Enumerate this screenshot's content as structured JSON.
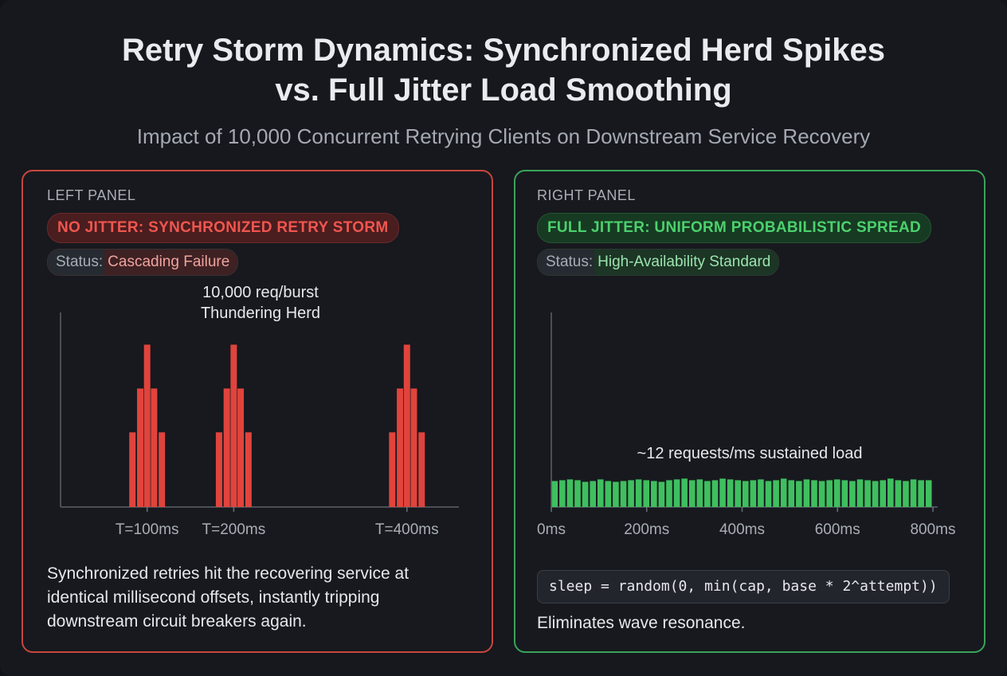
{
  "title_line1": "Retry Storm Dynamics: Synchronized Herd Spikes",
  "title_line2": "vs. Full Jitter Load Smoothing",
  "subtitle": "Impact of 10,000 Concurrent Retrying Clients on Downstream Service Recovery",
  "left": {
    "panel_label": "LEFT PANEL",
    "badge": "NO JITTER: SYNCHRONIZED RETRY STORM",
    "status_key": "Status:",
    "status_value": "Cascading Failure",
    "annotation_line1": "10,000 req/burst",
    "annotation_line2": "Thundering Herd",
    "description": "Synchronized retries hit the recovering service at identical millisecond offsets, instantly tripping downstream circuit breakers again.",
    "color": "#e0443c"
  },
  "right": {
    "panel_label": "RIGHT PANEL",
    "badge": "FULL JITTER: UNIFORM PROBABILISTIC SPREAD",
    "status_key": "Status:",
    "status_value": "High-Availability Standard",
    "annotation": "~12 requests/ms sustained load",
    "code": "sleep = random(0, min(cap, base * 2^attempt))",
    "footnote": "Eliminates wave resonance.",
    "color": "#3fbf5f"
  },
  "chart_data": [
    {
      "type": "bar",
      "panel": "left",
      "title": "",
      "xlabel": "",
      "ylabel": "",
      "x_ticks": [
        "T=100ms",
        "T=200ms",
        "T=400ms"
      ],
      "x_tick_values": [
        100,
        200,
        400
      ],
      "xlim": [
        0,
        460
      ],
      "ylim": [
        0,
        1.1
      ],
      "bars": [
        {
          "x": 83,
          "value": 0.46
        },
        {
          "x": 92,
          "value": 0.73
        },
        {
          "x": 100,
          "value": 1.0
        },
        {
          "x": 108,
          "value": 0.73
        },
        {
          "x": 117,
          "value": 0.46
        },
        {
          "x": 183,
          "value": 0.46
        },
        {
          "x": 192,
          "value": 0.73
        },
        {
          "x": 200,
          "value": 1.0
        },
        {
          "x": 208,
          "value": 0.73
        },
        {
          "x": 217,
          "value": 0.46
        },
        {
          "x": 383,
          "value": 0.46
        },
        {
          "x": 392,
          "value": 0.73
        },
        {
          "x": 400,
          "value": 1.0
        },
        {
          "x": 408,
          "value": 0.73
        },
        {
          "x": 417,
          "value": 0.46
        }
      ]
    },
    {
      "type": "bar",
      "panel": "right",
      "title": "",
      "xlabel": "",
      "ylabel": "",
      "x_ticks": [
        "0ms",
        "200ms",
        "400ms",
        "600ms",
        "800ms"
      ],
      "x_tick_values": [
        0,
        200,
        400,
        600,
        800
      ],
      "xlim": [
        0,
        810
      ],
      "ylim": [
        0,
        1.1
      ],
      "bin_width_ms": 16,
      "values": [
        0.16,
        0.165,
        0.17,
        0.165,
        0.155,
        0.16,
        0.17,
        0.16,
        0.155,
        0.16,
        0.165,
        0.17,
        0.165,
        0.16,
        0.155,
        0.165,
        0.17,
        0.175,
        0.165,
        0.17,
        0.16,
        0.165,
        0.175,
        0.17,
        0.165,
        0.16,
        0.165,
        0.17,
        0.16,
        0.165,
        0.175,
        0.165,
        0.16,
        0.17,
        0.165,
        0.16,
        0.165,
        0.17,
        0.165,
        0.16,
        0.17,
        0.165,
        0.16,
        0.165,
        0.175,
        0.165,
        0.16,
        0.17,
        0.165,
        0.165
      ]
    }
  ]
}
